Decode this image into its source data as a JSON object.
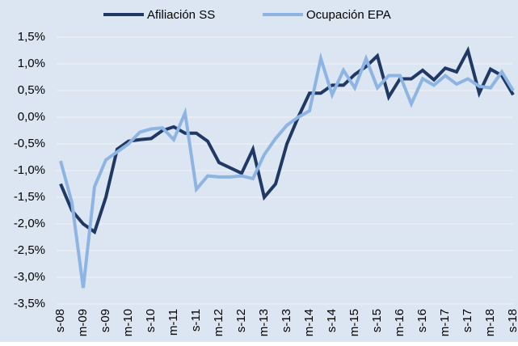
{
  "chart_data": {
    "type": "line",
    "categories": [
      "s-08",
      null,
      "m-09",
      null,
      "s-09",
      null,
      "m-10",
      null,
      "s-10",
      null,
      "m-11",
      null,
      "s-11",
      null,
      "m-12",
      null,
      "s-12",
      null,
      "m-13",
      null,
      "s-13",
      null,
      "m-14",
      null,
      "s-14",
      null,
      "m-15",
      null,
      "s-15",
      null,
      "m-16",
      null,
      "s-16",
      null,
      "m-17",
      null,
      "s-17",
      null,
      "m-18",
      null,
      "s-18"
    ],
    "series": [
      {
        "name": "Afiliación SS",
        "color": "#1f3864",
        "values": [
          -1.25,
          -1.75,
          -2.0,
          -2.15,
          -1.5,
          -0.6,
          -0.45,
          -0.42,
          -0.4,
          -0.25,
          -0.18,
          -0.3,
          -0.3,
          -0.45,
          -0.85,
          -0.95,
          -1.05,
          -0.6,
          -1.5,
          -1.25,
          -0.5,
          0.0,
          0.45,
          0.45,
          0.6,
          0.6,
          0.8,
          0.95,
          1.15,
          0.38,
          0.72,
          0.72,
          0.88,
          0.7,
          0.92,
          0.85,
          1.25,
          0.45,
          0.9,
          0.78,
          0.42
        ]
      },
      {
        "name": "Ocupación EPA",
        "color": "#8eb4e3",
        "values": [
          -0.82,
          -1.6,
          -3.2,
          -1.3,
          -0.8,
          -0.65,
          -0.5,
          -0.28,
          -0.22,
          -0.2,
          -0.42,
          0.08,
          -1.35,
          -1.1,
          -1.12,
          -1.12,
          -1.1,
          -1.15,
          -0.7,
          -0.4,
          -0.15,
          0.0,
          0.12,
          1.1,
          0.42,
          0.88,
          0.55,
          1.1,
          0.55,
          0.78,
          0.78,
          0.25,
          0.72,
          0.6,
          0.78,
          0.62,
          0.72,
          0.58,
          0.55,
          0.85,
          0.5
        ]
      }
    ],
    "ylim": [
      -3.5,
      1.5
    ],
    "yticks": [
      {
        "value": -3.5,
        "label": "-3,5%"
      },
      {
        "value": -3.0,
        "label": "-3,0%"
      },
      {
        "value": -2.5,
        "label": "-2,5%"
      },
      {
        "value": -2.0,
        "label": "-2,0%"
      },
      {
        "value": -1.5,
        "label": "-1,5%"
      },
      {
        "value": -1.0,
        "label": "-1,0%"
      },
      {
        "value": -0.5,
        "label": "-0,5%"
      },
      {
        "value": 0.0,
        "label": "0,0%"
      },
      {
        "value": 0.5,
        "label": "0,5%"
      },
      {
        "value": 1.0,
        "label": "1,0%"
      },
      {
        "value": 1.5,
        "label": "1,5%"
      }
    ],
    "grid": true,
    "legend": "top",
    "background": "#dce6f2"
  }
}
